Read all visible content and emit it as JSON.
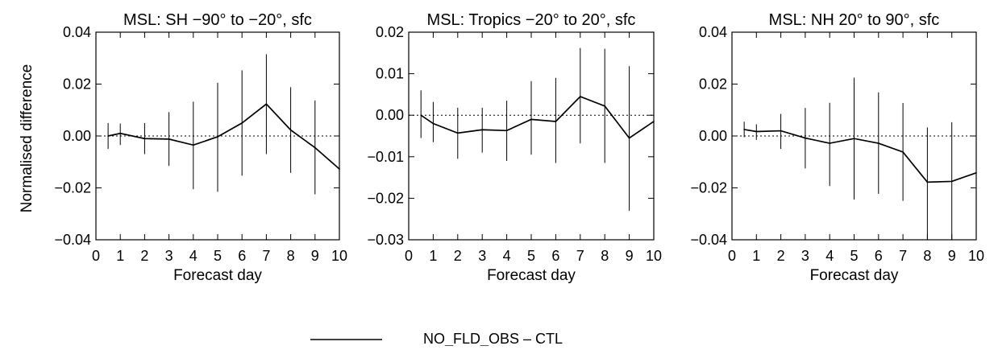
{
  "figure": {
    "ylabel": "Normalised difference",
    "legend": {
      "label": "NO_FLD_OBS – CTL",
      "color": "#000000",
      "placement": "bottom-center"
    }
  },
  "chart_data": [
    {
      "type": "line",
      "title": "MSL: SH −90° to −20°, sfc",
      "xlabel": "Forecast day",
      "ylabel": "Normalised difference",
      "xlim": [
        0,
        10
      ],
      "ylim": [
        -0.04,
        0.04
      ],
      "xticks": [
        0,
        1,
        2,
        3,
        4,
        5,
        6,
        7,
        8,
        9,
        10
      ],
      "xtick_labels": [
        "0",
        "1",
        "2",
        "3",
        "4",
        "5",
        "6",
        "7",
        "8",
        "9",
        "10"
      ],
      "yticks": [
        0.04,
        0.02,
        0.0,
        -0.02,
        -0.04
      ],
      "ytick_labels": [
        "0.04",
        "0.02",
        "0.00",
        "−0.02",
        "−0.04"
      ],
      "zero_line": "dotted",
      "series": [
        {
          "name": "NO_FLD_OBS – CTL",
          "x": [
            0.5,
            1,
            2,
            3,
            4,
            5,
            6,
            7,
            8,
            9,
            10
          ],
          "y": [
            0.0,
            0.001,
            -0.001,
            -0.0012,
            -0.0035,
            -0.0003,
            0.005,
            0.0123,
            0.0023,
            -0.0045,
            -0.0127
          ],
          "err_low": [
            -0.005,
            -0.0035,
            -0.007,
            -0.0115,
            -0.0205,
            -0.0215,
            -0.0153,
            -0.007,
            -0.0142,
            -0.0225,
            -0.0355
          ],
          "err_high": [
            0.005,
            0.0048,
            0.005,
            0.0092,
            0.0132,
            0.0205,
            0.0253,
            0.0315,
            0.0188,
            0.0137,
            0.0095
          ]
        }
      ]
    },
    {
      "type": "line",
      "title": "MSL: Tropics −20° to 20°, sfc",
      "xlabel": "Forecast day",
      "ylabel": "",
      "xlim": [
        0,
        10
      ],
      "ylim": [
        -0.03,
        0.02
      ],
      "xticks": [
        0,
        1,
        2,
        3,
        4,
        5,
        6,
        7,
        8,
        9,
        10
      ],
      "xtick_labels": [
        "0",
        "1",
        "2",
        "3",
        "4",
        "5",
        "6",
        "7",
        "8",
        "9",
        "10"
      ],
      "yticks": [
        0.02,
        0.01,
        0.0,
        -0.01,
        -0.02,
        -0.03
      ],
      "ytick_labels": [
        "0.02",
        "0.01",
        "0.00",
        "−0.01",
        "−0.02",
        "−0.03"
      ],
      "zero_line": "dotted",
      "series": [
        {
          "name": "NO_FLD_OBS – CTL",
          "x": [
            0.5,
            1,
            2,
            3,
            4,
            5,
            6,
            7,
            8,
            9,
            10
          ],
          "y": [
            0.0,
            -0.002,
            -0.0043,
            -0.0035,
            -0.0037,
            -0.001,
            -0.0015,
            0.0045,
            0.0022,
            -0.0055,
            -0.0015
          ],
          "err_low": [
            -0.0055,
            -0.0065,
            -0.0105,
            -0.009,
            -0.011,
            -0.0095,
            -0.0115,
            -0.0068,
            -0.0115,
            -0.023,
            -0.021
          ],
          "err_high": [
            0.006,
            0.0032,
            0.0018,
            0.0018,
            0.0035,
            0.0082,
            0.009,
            0.0162,
            0.016,
            0.0118,
            0.0175
          ]
        }
      ]
    },
    {
      "type": "line",
      "title": "MSL: NH 20° to 90°, sfc",
      "xlabel": "Forecast day",
      "ylabel": "",
      "xlim": [
        0,
        10
      ],
      "ylim": [
        -0.04,
        0.04
      ],
      "xticks": [
        0,
        1,
        2,
        3,
        4,
        5,
        6,
        7,
        8,
        9,
        10
      ],
      "xtick_labels": [
        "0",
        "1",
        "2",
        "3",
        "4",
        "5",
        "6",
        "7",
        "8",
        "9",
        "10"
      ],
      "yticks": [
        0.04,
        0.02,
        0.0,
        -0.02,
        -0.04
      ],
      "ytick_labels": [
        "0.04",
        "0.02",
        "0.00",
        "−0.02",
        "−0.04"
      ],
      "zero_line": "dotted",
      "series": [
        {
          "name": "NO_FLD_OBS – CTL",
          "x": [
            0.5,
            1,
            2,
            3,
            4,
            5,
            6,
            7,
            8,
            9,
            10
          ],
          "y": [
            0.0025,
            0.0017,
            0.002,
            -0.0008,
            -0.0028,
            -0.001,
            -0.0028,
            -0.0062,
            -0.0178,
            -0.0175,
            -0.0142
          ],
          "err_low": [
            -0.0005,
            -0.0015,
            -0.005,
            -0.0125,
            -0.0193,
            -0.0245,
            -0.0223,
            -0.025,
            -0.04,
            -0.04,
            -0.0385
          ],
          "err_high": [
            0.0055,
            0.0045,
            0.0085,
            0.0108,
            0.0128,
            0.0225,
            0.0168,
            0.0127,
            0.0033,
            0.0053,
            0.009
          ]
        }
      ]
    }
  ]
}
